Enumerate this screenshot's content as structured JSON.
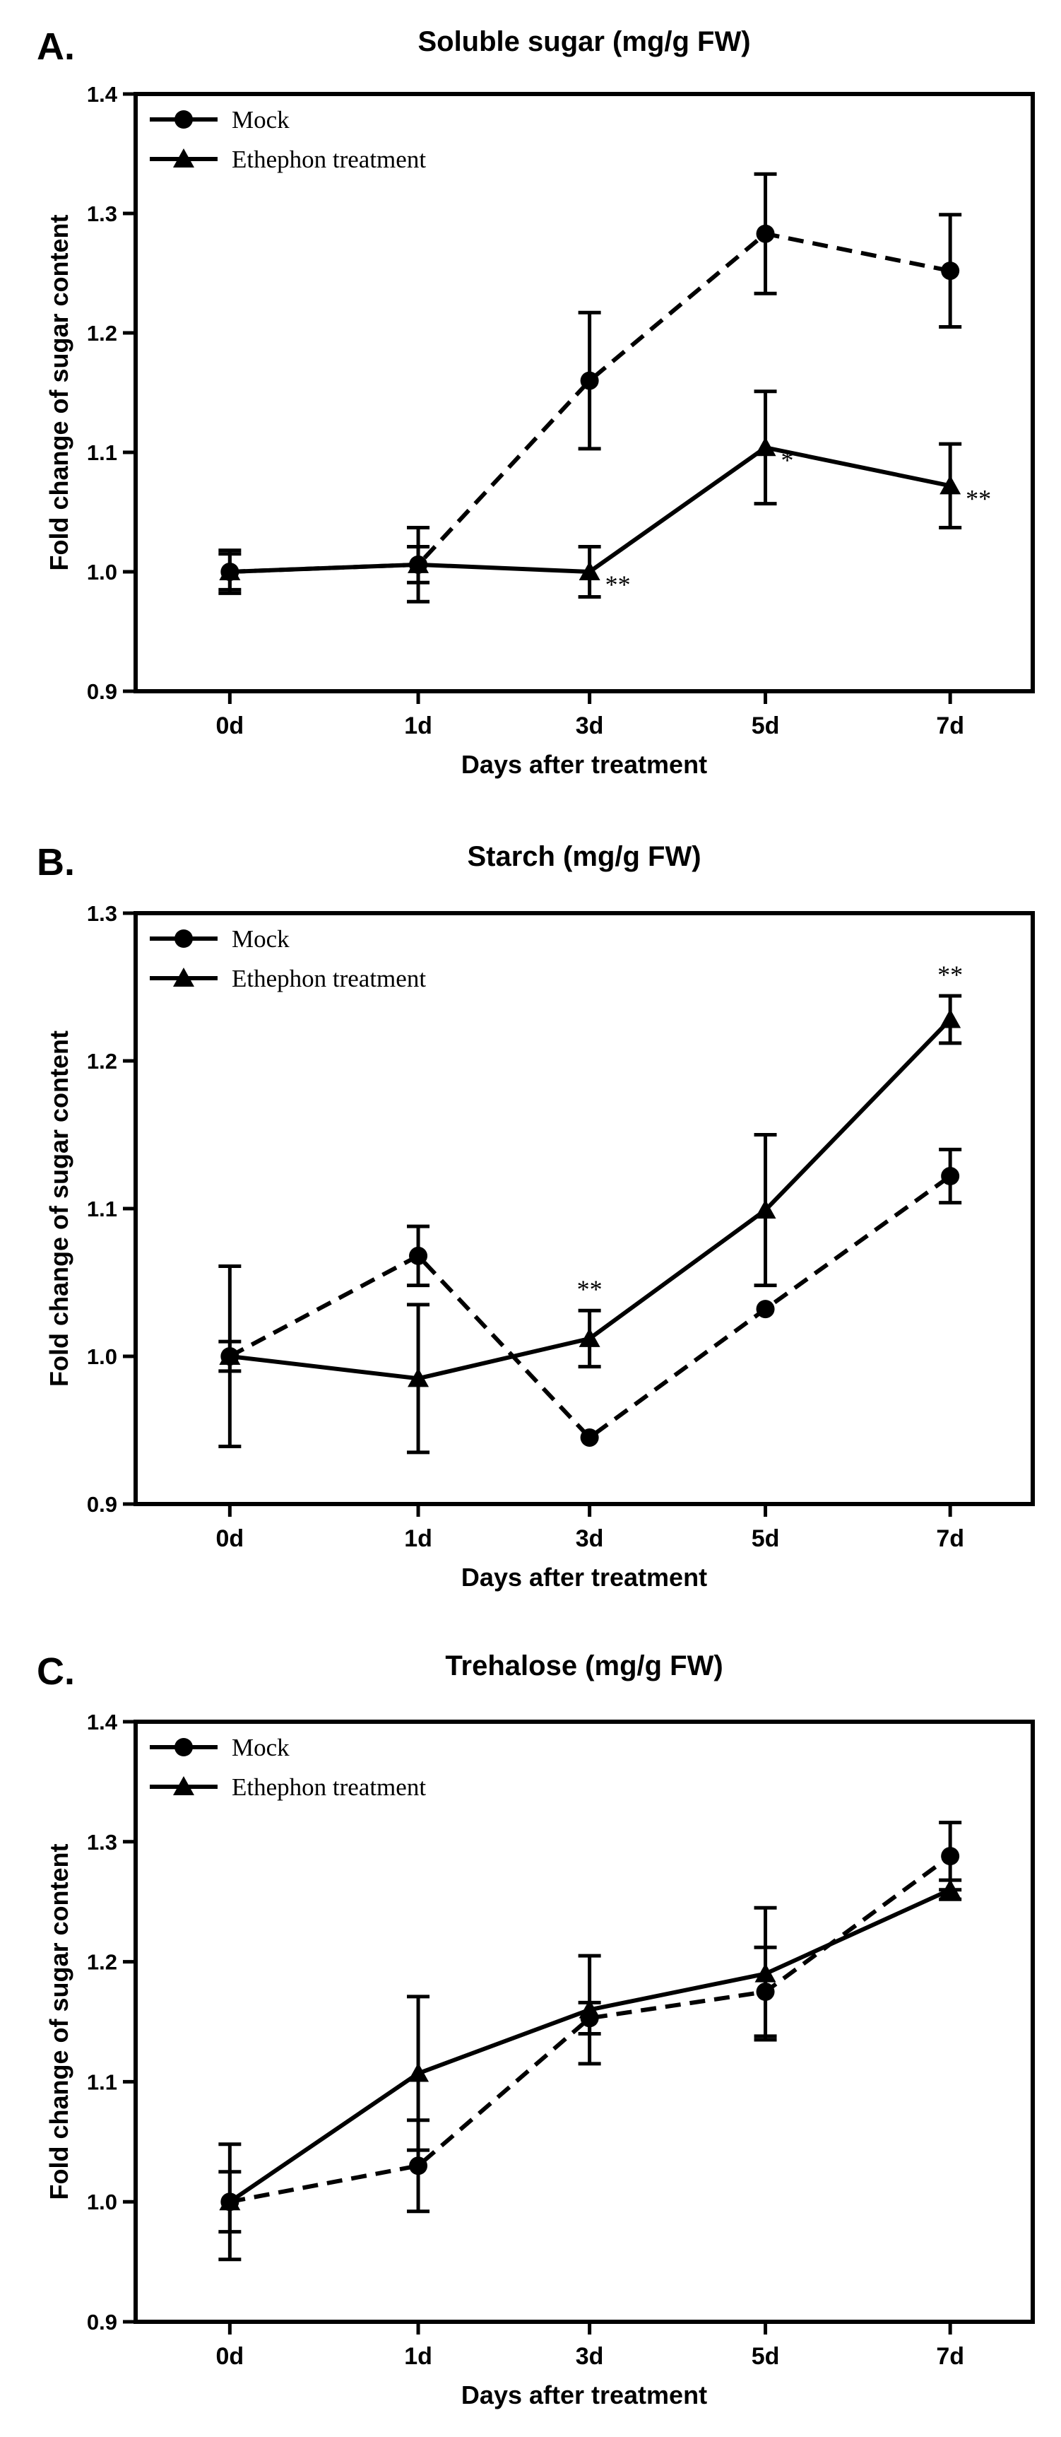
{
  "chart_data": [
    {
      "panel": "A.",
      "type": "line",
      "title": "Soluble sugar (mg/g FW)",
      "xlabel": "Days after treatment",
      "ylabel": "Fold change of sugar content",
      "categories": [
        "0d",
        "1d",
        "3d",
        "5d",
        "7d"
      ],
      "ylim": [
        0.9,
        1.4
      ],
      "yticks": [
        0.9,
        1.0,
        1.1,
        1.2,
        1.3,
        1.4
      ],
      "ytick_labels": [
        "0.9",
        "1.0",
        "1.1",
        "1.2",
        "1.3",
        "1.4"
      ],
      "legend_position": "top-left",
      "series": [
        {
          "name": "Mock",
          "marker": "circle",
          "line_style": "dashed",
          "values": [
            1.0,
            1.006,
            1.16,
            1.283,
            1.252
          ],
          "errors": [
            0.018,
            0.015,
            0.057,
            0.05,
            0.047
          ]
        },
        {
          "name": "Ethephon treatment",
          "marker": "triangle",
          "line_style": "solid",
          "values": [
            1.0,
            1.006,
            1.0,
            1.104,
            1.072
          ],
          "errors": [
            0.015,
            0.031,
            0.021,
            0.047,
            0.035
          ],
          "significance": [
            "",
            "",
            "**",
            "*",
            "**"
          ]
        }
      ]
    },
    {
      "panel": "B.",
      "type": "line",
      "title": "Starch (mg/g FW)",
      "xlabel": "Days after treatment",
      "ylabel": "Fold change of sugar content",
      "categories": [
        "0d",
        "1d",
        "3d",
        "5d",
        "7d"
      ],
      "ylim": [
        0.9,
        1.3
      ],
      "yticks": [
        0.9,
        1.0,
        1.1,
        1.2,
        1.3
      ],
      "ytick_labels": [
        "0.9",
        "1.0",
        "1.1",
        "1.2",
        "1.3"
      ],
      "legend_position": "top-left",
      "series": [
        {
          "name": "Mock",
          "marker": "circle",
          "line_style": "dashed",
          "values": [
            1.0,
            1.068,
            0.945,
            1.032,
            1.122
          ],
          "errors": [
            0.061,
            0.02,
            0.0,
            0.0,
            0.018
          ]
        },
        {
          "name": "Ethephon treatment",
          "marker": "triangle",
          "line_style": "solid",
          "values": [
            1.0,
            0.985,
            1.012,
            1.099,
            1.228
          ],
          "errors": [
            0.01,
            0.05,
            0.019,
            0.051,
            0.016
          ],
          "significance": [
            "",
            "",
            "**",
            "",
            "**"
          ]
        }
      ]
    },
    {
      "panel": "C.",
      "type": "line",
      "title": "Trehalose (mg/g FW)",
      "xlabel": "Days after treatment",
      "ylabel": "Fold change of sugar content",
      "categories": [
        "0d",
        "1d",
        "3d",
        "5d",
        "7d"
      ],
      "ylim": [
        0.9,
        1.4
      ],
      "yticks": [
        0.9,
        1.0,
        1.1,
        1.2,
        1.3,
        1.4
      ],
      "ytick_labels": [
        "0.9",
        "1.0",
        "1.1",
        "1.2",
        "1.3",
        "1.4"
      ],
      "legend_position": "top-left",
      "series": [
        {
          "name": "Mock",
          "marker": "circle",
          "line_style": "dashed",
          "values": [
            1.0,
            1.03,
            1.153,
            1.175,
            1.288
          ],
          "errors": [
            0.048,
            0.038,
            0.013,
            0.037,
            0.028
          ]
        },
        {
          "name": "Ethephon treatment",
          "marker": "triangle",
          "line_style": "solid",
          "values": [
            1.0,
            1.107,
            1.16,
            1.19,
            1.26
          ],
          "errors": [
            0.025,
            0.064,
            0.045,
            0.055,
            0.008
          ],
          "significance": [
            "",
            "",
            "",
            "",
            ""
          ]
        }
      ]
    }
  ]
}
